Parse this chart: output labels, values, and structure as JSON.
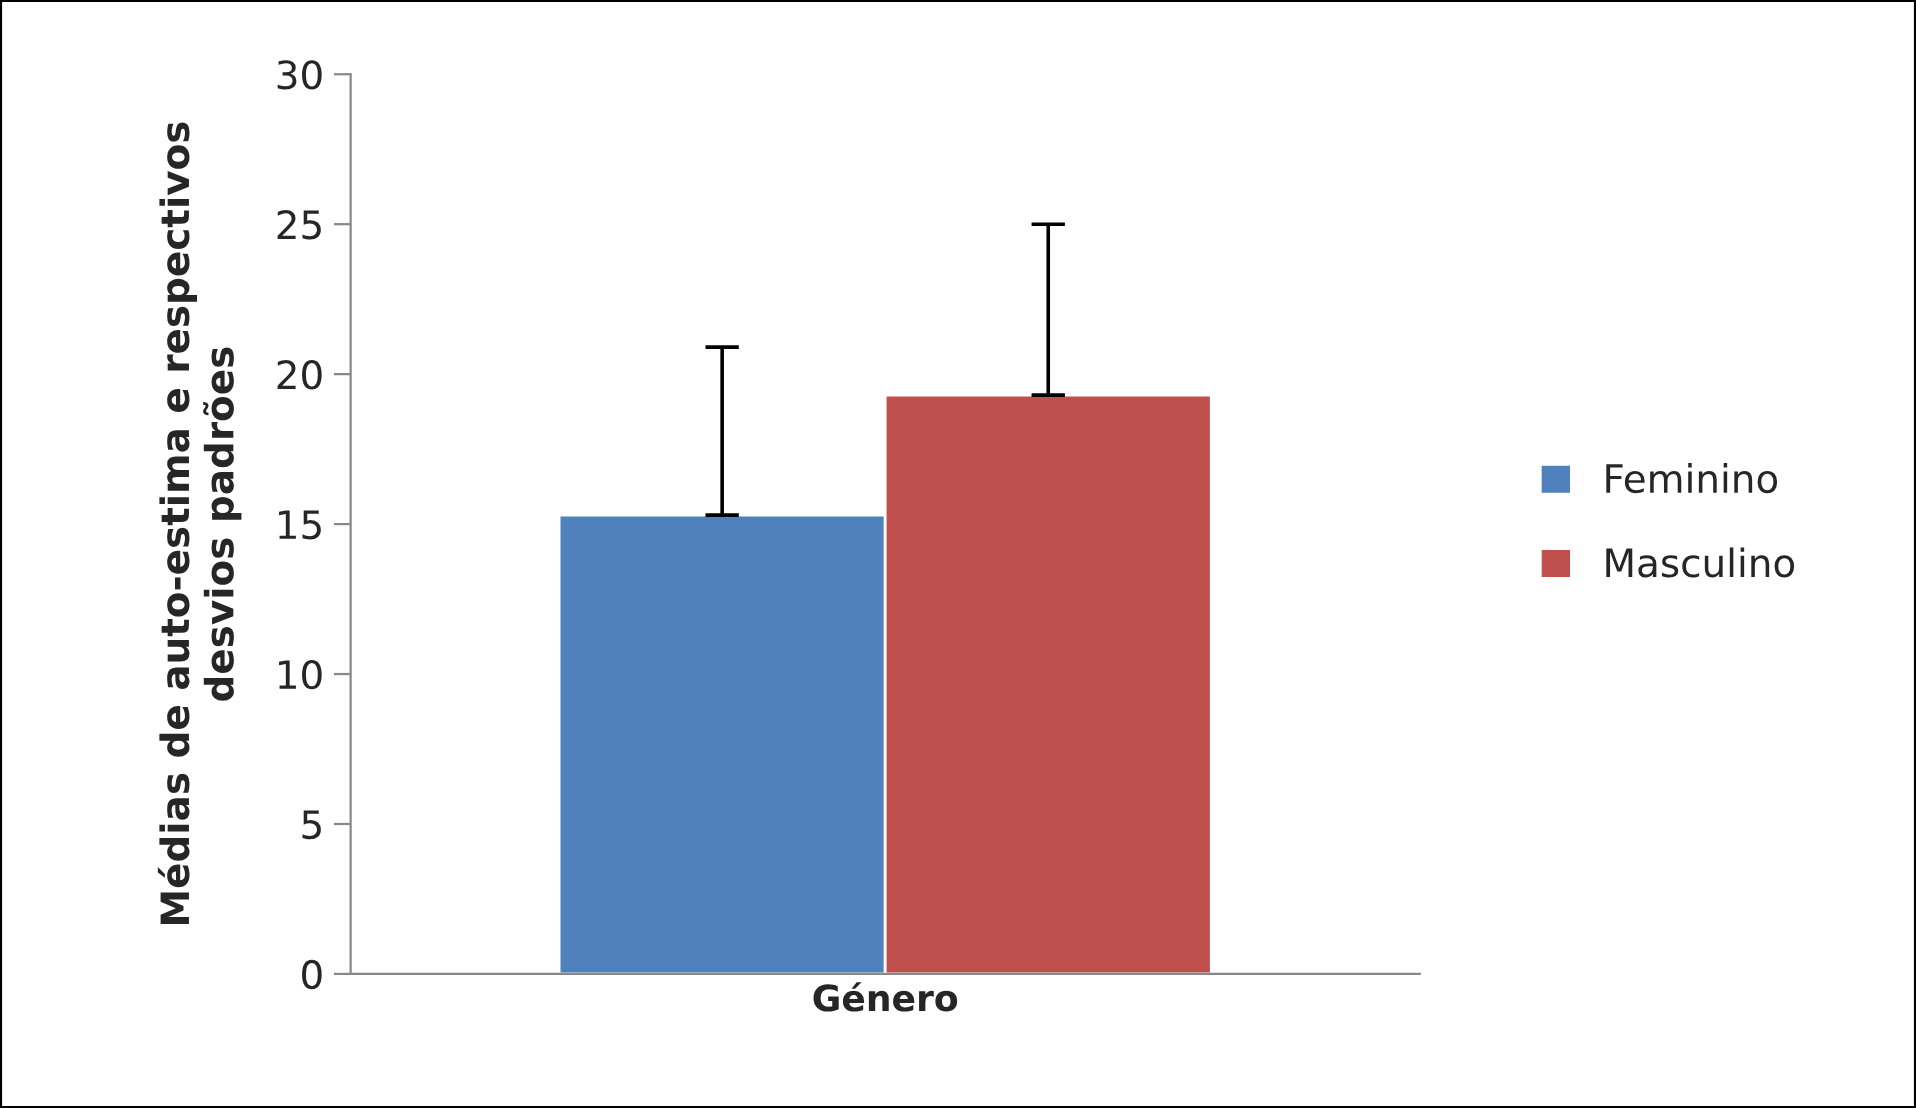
{
  "chart_data": {
    "type": "bar",
    "ylabel": "Médias de auto-estima e respectivos\ndesvios padrões",
    "categories": [
      "Género"
    ],
    "series": [
      {
        "name": "Feminino",
        "color": "#4f81bd",
        "values": [
          15.3
        ],
        "errors": [
          [
            15.3,
            20.9
          ]
        ]
      },
      {
        "name": "Masculino",
        "color": "#c0504d",
        "values": [
          19.3
        ],
        "errors": [
          [
            19.3,
            25.0
          ]
        ]
      }
    ],
    "ylim": [
      0,
      30
    ],
    "yticks": [
      0,
      5,
      10,
      15,
      20,
      25,
      30
    ],
    "grid": false,
    "legend": "right"
  }
}
